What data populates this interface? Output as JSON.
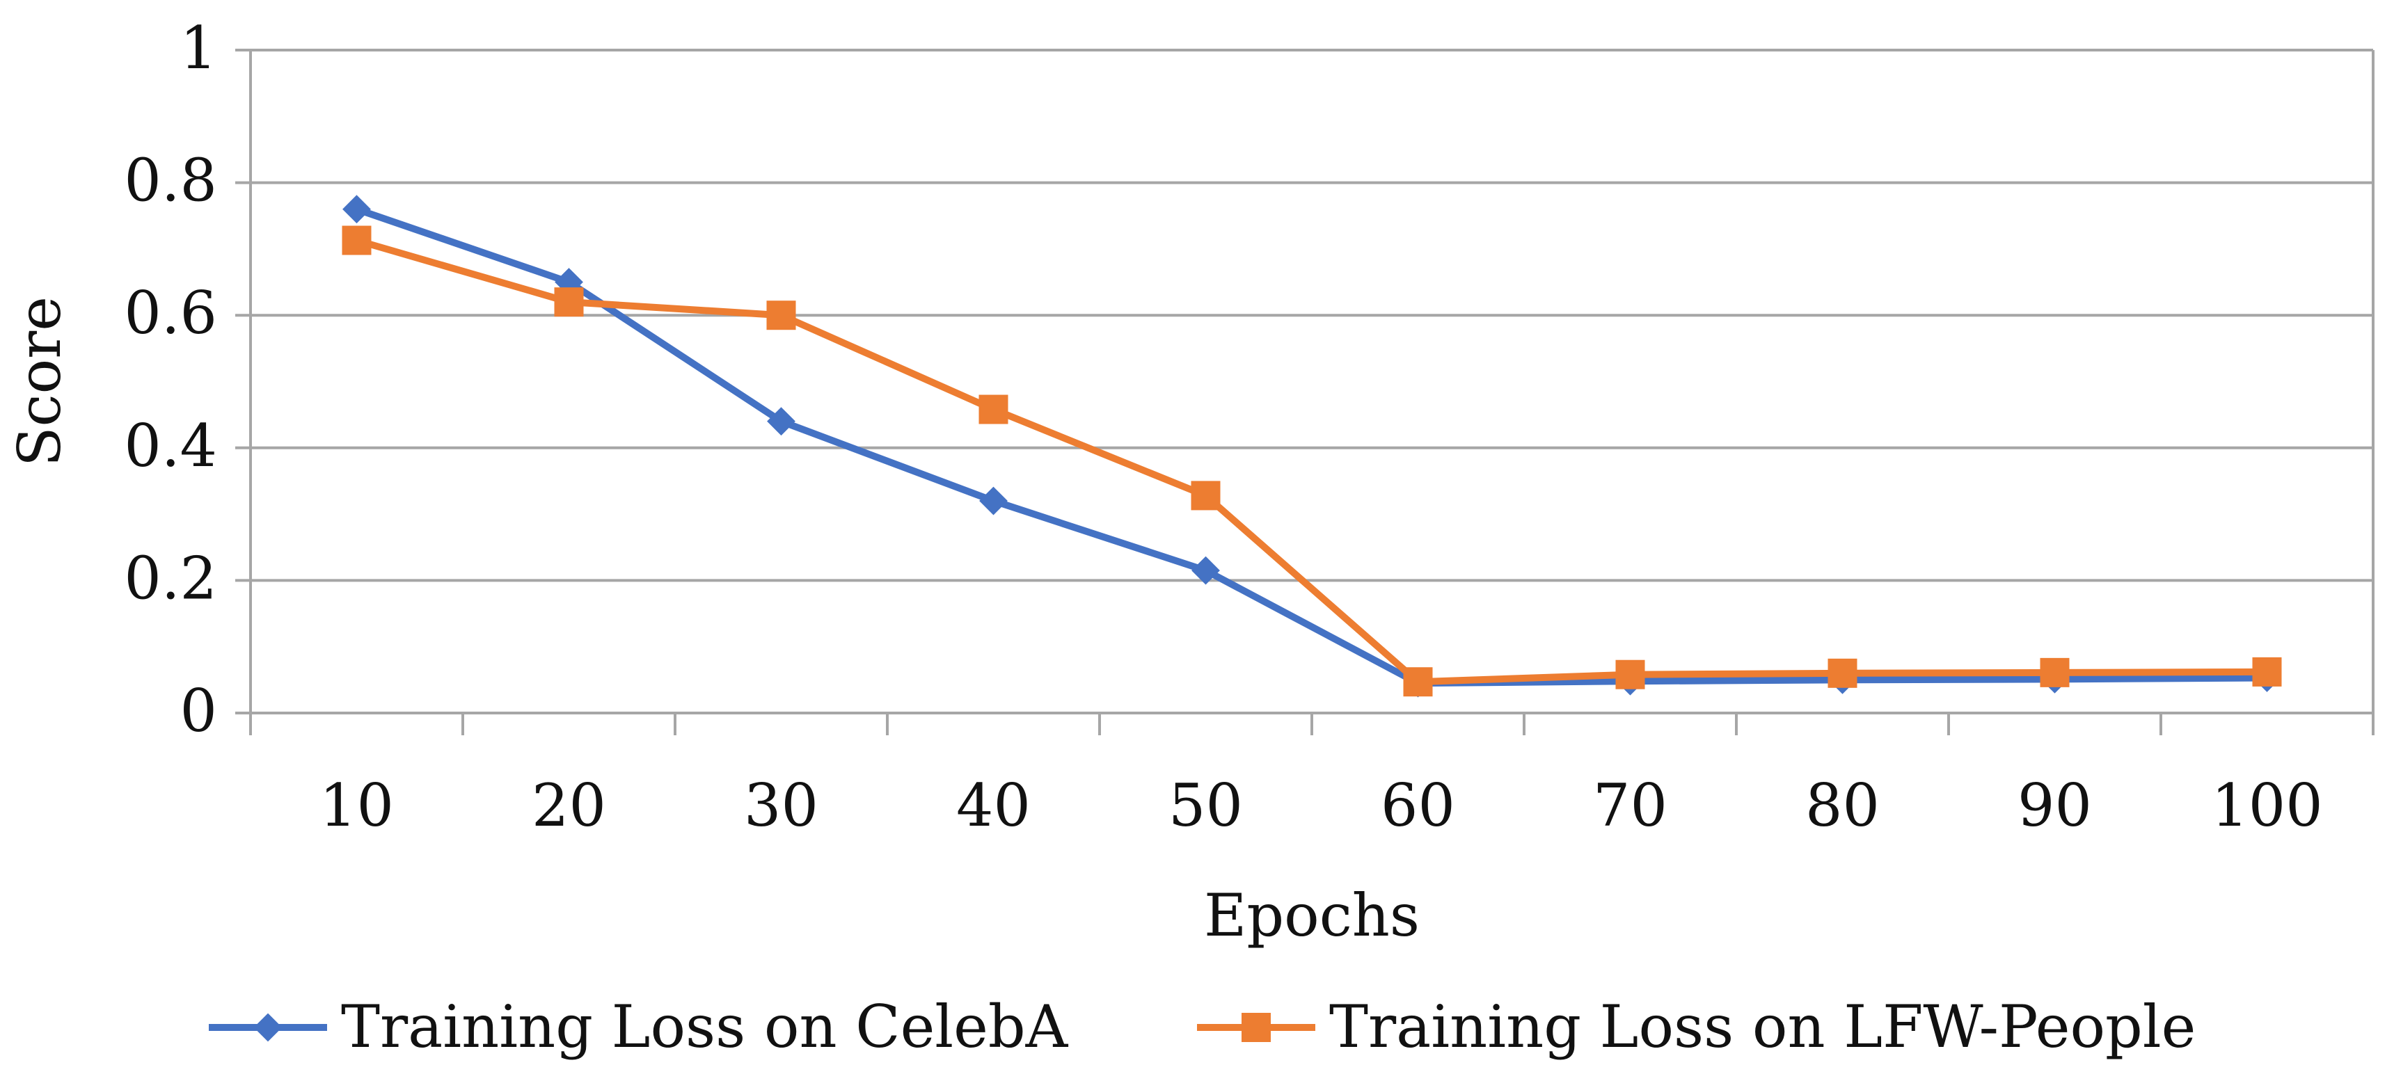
{
  "chart_data": {
    "type": "line",
    "title": "",
    "xlabel": "Epochs",
    "ylabel": "Score",
    "categories": [
      "10",
      "20",
      "30",
      "40",
      "50",
      "60",
      "70",
      "80",
      "90",
      "100"
    ],
    "ylim": [
      0,
      1
    ],
    "yticks": [
      0,
      0.2,
      0.4,
      0.6,
      0.8,
      1
    ],
    "ytick_labels": [
      "0",
      "0.2",
      "0.4",
      "0.6",
      "0.8",
      "1"
    ],
    "grid": true,
    "legend_position": "bottom",
    "series": [
      {
        "name": "Training Loss on CelebA",
        "values": [
          0.76,
          0.65,
          0.44,
          0.32,
          0.215,
          0.045,
          0.048,
          0.05,
          0.051,
          0.053
        ],
        "color": "#4472C4",
        "marker": "diamond"
      },
      {
        "name": "Training Loss on LFW-People",
        "values": [
          0.713,
          0.62,
          0.6,
          0.458,
          0.328,
          0.047,
          0.058,
          0.06,
          0.061,
          0.062
        ],
        "color": "#ED7D31",
        "marker": "square"
      }
    ]
  },
  "colors": {
    "gridline": "#A6A6A6",
    "axis": "#A6A6A6",
    "plot_border": "#A6A6A6",
    "text": "#111111",
    "background": "#FFFFFF"
  }
}
